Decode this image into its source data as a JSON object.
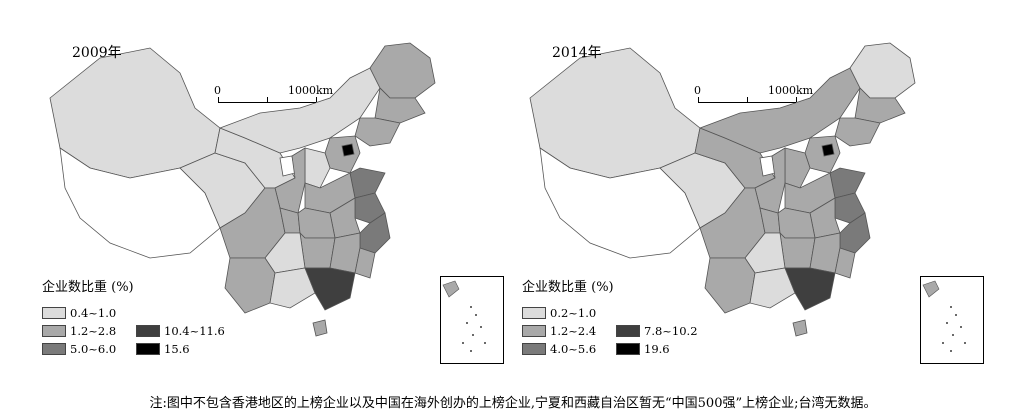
{
  "maps": [
    {
      "year": "2009年",
      "scale_zero": "0",
      "scale_max": "1000km",
      "legend_title": "企业数比重 (%)",
      "legend": [
        {
          "label": "0.4~1.0",
          "color": "#dcdcdc"
        },
        {
          "label": "1.2~2.8",
          "color": "#a9a9a9"
        },
        {
          "label": "5.0~6.0",
          "color": "#7a7a7a"
        },
        {
          "label": "10.4~11.6",
          "color": "#3f3f3f"
        },
        {
          "label": "15.6",
          "color": "#000000"
        }
      ]
    },
    {
      "year": "2014年",
      "scale_zero": "0",
      "scale_max": "1000km",
      "legend_title": "企业数比重 (%)",
      "legend": [
        {
          "label": "0.2~1.0",
          "color": "#dcdcdc"
        },
        {
          "label": "1.2~2.4",
          "color": "#a9a9a9"
        },
        {
          "label": "4.0~5.6",
          "color": "#7a7a7a"
        },
        {
          "label": "7.8~10.2",
          "color": "#3f3f3f"
        },
        {
          "label": "19.6",
          "color": "#000000"
        }
      ]
    }
  ],
  "note": "注:图中不包含香港地区的上榜企业以及中国在海外创办的上榜企业,宁夏和西藏自治区暂无“中国500强”上榜企业;台湾无数据。"
}
